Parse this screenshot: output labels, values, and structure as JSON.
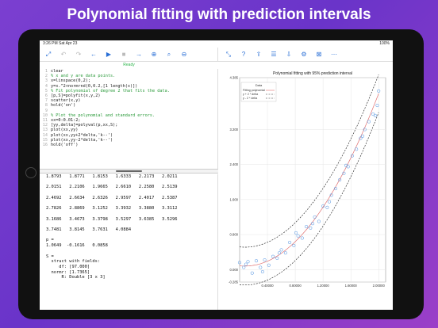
{
  "headline": "Polynomial fitting with prediction intervals",
  "status": {
    "time": "3:26 PM",
    "date": "Sat Apr 23",
    "battery": "100%"
  },
  "toolbar": {
    "left": [
      {
        "name": "expand-icon",
        "g": "⤢"
      },
      {
        "name": "undo-icon",
        "g": "↶",
        "gray": true
      },
      {
        "name": "redo-icon",
        "g": "↷",
        "gray": true
      },
      {
        "name": "back-icon",
        "g": "←"
      },
      {
        "name": "play-icon",
        "g": "▶"
      },
      {
        "name": "stop-icon",
        "g": "■",
        "gray": true
      },
      {
        "name": "forward-icon",
        "g": "→"
      },
      {
        "name": "zoom-in-icon",
        "g": "⊕"
      },
      {
        "name": "search-icon",
        "g": "⌕"
      },
      {
        "name": "zoom-out-icon",
        "g": "⊖"
      }
    ],
    "right": [
      {
        "name": "collapse-icon",
        "g": "⤡"
      },
      {
        "name": "help-icon",
        "g": "?"
      },
      {
        "name": "share-icon",
        "g": "⇪"
      },
      {
        "name": "list-icon",
        "g": "☰"
      },
      {
        "name": "export-icon",
        "g": "⇩"
      },
      {
        "name": "settings-icon",
        "g": "⚙"
      },
      {
        "name": "close-icon",
        "g": "⊠"
      },
      {
        "name": "more-icon",
        "g": "⋯"
      }
    ]
  },
  "ready": "Ready",
  "code_lines": [
    {
      "n": "1",
      "t": "clear",
      "c": false
    },
    {
      "n": "2",
      "t": "% x and y are data points.",
      "c": true
    },
    {
      "n": "3",
      "t": "x=linspace(0,2);",
      "c": false
    },
    {
      "n": "4",
      "t": "y=x.^2+normrnd(0,0.2,[1 length(x)])",
      "c": false
    },
    {
      "n": "5",
      "t": "% Fit polynomial of degree 2 that fits the data.",
      "c": true
    },
    {
      "n": "6",
      "t": "[p,S]=polyfit(x,y,2)",
      "c": false
    },
    {
      "n": "7",
      "t": "scatter(x,y)",
      "c": false
    },
    {
      "n": "8",
      "t": "hold('on')",
      "c": false
    },
    {
      "n": "9",
      "t": "",
      "c": false
    },
    {
      "n": "10",
      "t": "% Plot the polynomial and standard errors.",
      "c": true
    },
    {
      "n": "11",
      "t": "xx=0:0.01:2;",
      "c": false
    },
    {
      "n": "12",
      "t": "[yy,delta]=polyval(p,xx,S);",
      "c": false
    },
    {
      "n": "13",
      "t": "plot(xx,yy)",
      "c": false
    },
    {
      "n": "14",
      "t": "plot(xx,yy+2*delta,'k--')",
      "c": false
    },
    {
      "n": "15",
      "t": "plot(xx,yy-2*delta,'k--')",
      "c": false
    },
    {
      "n": "16",
      "t": "hold('off')",
      "c": false
    }
  ],
  "console_lines": [
    "1.8793   1.8771   1.8153   1.6333   2.2173   2.0211",
    "",
    "2.0151   2.2106   1.9665   2.6610   2.2580   2.5139",
    "",
    "2.4692   2.6634   2.6326   2.9597   2.4017   2.5387",
    "",
    "2.7826   2.8869   3.1252   3.3932   3.3880   3.3112",
    "",
    "3.1686   3.4673   3.3798   3.5297   3.6385   3.5296",
    "",
    "3.7481   3.8145   3.7631   4.0884",
    "",
    "p =",
    "1.0649  -0.1616   0.0858",
    "",
    "S =",
    "  struct with fields:",
    "     df: [97.000]",
    "  normr: [1.7365]",
    "      R: Double [3 x 3]"
  ],
  "chart_data": {
    "type": "scatter",
    "title": "Polynomial fitting with 95% prediction interval",
    "legend_title": "Data",
    "legend": [
      "Fitting polynomial",
      "y + 2 * delta",
      "y - 2 * delta"
    ],
    "legend_position": "top-left",
    "xlim": [
      0,
      2.1
    ],
    "ylim": [
      -0.285,
      4.385
    ],
    "xticks": [
      "0.40000",
      "0.80000",
      "1.20000",
      "1.60000",
      "2.00000"
    ],
    "yticks": [
      "-0.285",
      "0.000",
      "0.800",
      "1.600",
      "2.400",
      "3.200",
      "4.385"
    ],
    "poly": [
      1.0649,
      -0.1616,
      0.0858
    ],
    "delta": 0.36,
    "points": [
      [
        0,
        0.16
      ],
      [
        0.06,
        0.05
      ],
      [
        0.12,
        0.18
      ],
      [
        0.18,
        -0.08
      ],
      [
        0.24,
        0.2
      ],
      [
        0.3,
        0.05
      ],
      [
        0.36,
        0.22
      ],
      [
        0.42,
        0.1
      ],
      [
        0.48,
        0.3
      ],
      [
        0.54,
        0.26
      ],
      [
        0.6,
        0.45
      ],
      [
        0.66,
        0.38
      ],
      [
        0.72,
        0.62
      ],
      [
        0.78,
        0.55
      ],
      [
        0.84,
        0.77
      ],
      [
        0.9,
        0.72
      ],
      [
        0.96,
        0.98
      ],
      [
        1.02,
        0.95
      ],
      [
        1.08,
        1.2
      ],
      [
        1.14,
        1.1
      ],
      [
        1.2,
        1.45
      ],
      [
        1.26,
        1.42
      ],
      [
        1.32,
        1.7
      ],
      [
        1.38,
        1.85
      ],
      [
        1.44,
        2.05
      ],
      [
        1.5,
        2.2
      ],
      [
        1.56,
        2.35
      ],
      [
        1.62,
        2.6
      ],
      [
        1.68,
        2.75
      ],
      [
        1.74,
        3.0
      ],
      [
        1.8,
        3.2
      ],
      [
        1.86,
        3.38
      ],
      [
        1.92,
        3.55
      ],
      [
        1.98,
        3.75
      ],
      [
        2.0,
        4.08
      ],
      [
        0.09,
        0.12
      ],
      [
        0.33,
        -0.05
      ],
      [
        0.57,
        0.38
      ],
      [
        0.81,
        0.84
      ],
      [
        1.05,
        1.05
      ],
      [
        1.29,
        1.55
      ],
      [
        1.53,
        2.38
      ],
      [
        1.77,
        3.05
      ],
      [
        1.95,
        3.52
      ]
    ]
  },
  "colors": {
    "accent": "#2a6fd6",
    "ready": "#2bb54a",
    "comment": "#2a9a3a",
    "points": "#4a8fe0",
    "fit": "#e07070"
  }
}
